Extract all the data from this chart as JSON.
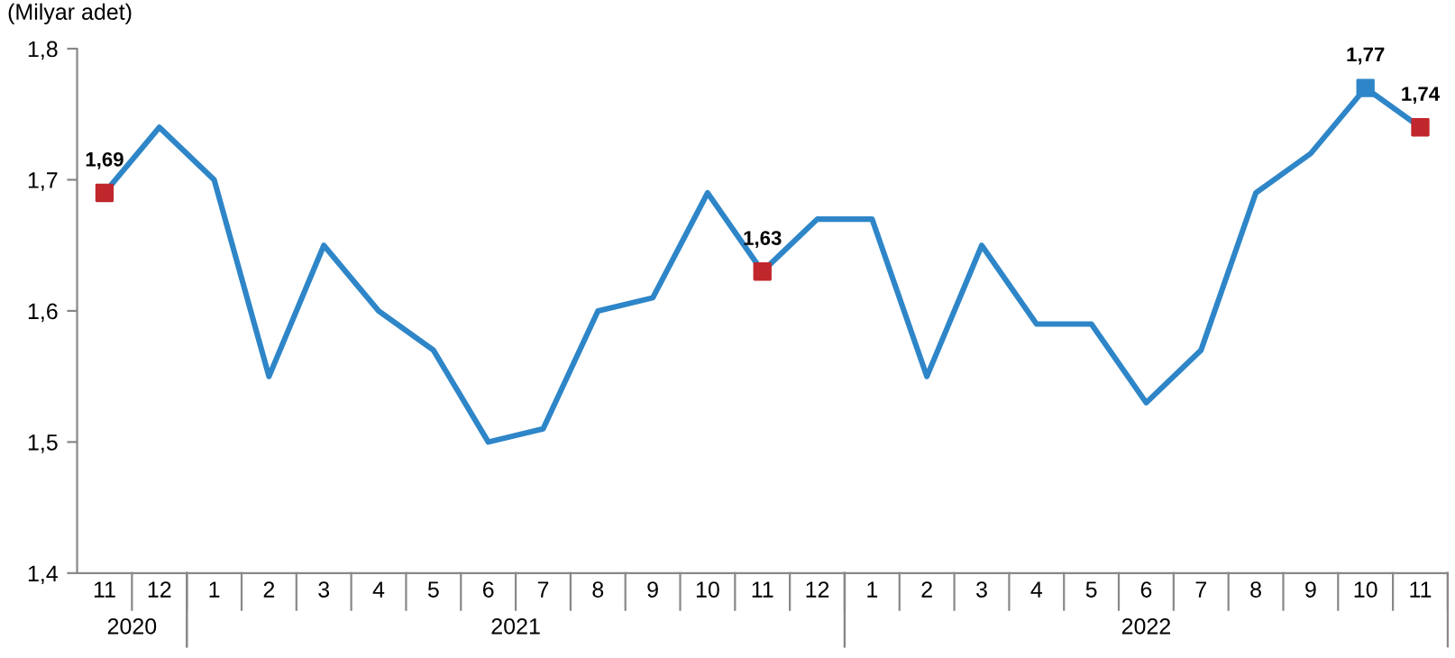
{
  "chart_data": {
    "type": "line",
    "ylabel": "(Milyar adet)",
    "categories": [
      "11",
      "12",
      "1",
      "2",
      "3",
      "4",
      "5",
      "6",
      "7",
      "8",
      "9",
      "10",
      "11",
      "12",
      "1",
      "2",
      "3",
      "4",
      "5",
      "6",
      "7",
      "8",
      "9",
      "10",
      "11"
    ],
    "annotations": [
      "2020",
      "2021",
      "2022"
    ],
    "series": [
      {
        "color": "#2e86c8",
        "values": [
          1.69,
          1.74,
          1.7,
          1.55,
          1.65,
          1.6,
          1.57,
          1.5,
          1.51,
          1.6,
          1.61,
          1.69,
          1.63,
          1.67,
          1.67,
          1.55,
          1.65,
          1.59,
          1.59,
          1.53,
          1.57,
          1.69,
          1.72,
          1.77,
          1.74
        ],
        "colors": [
          "#c0272d",
          null,
          null,
          null,
          null,
          null,
          null,
          null,
          null,
          null,
          null,
          null,
          "#c0272d",
          null,
          null,
          null,
          null,
          null,
          null,
          null,
          null,
          null,
          null,
          "#2e86c8",
          "#c0272d"
        ],
        "value_labels": [
          "1,69",
          null,
          null,
          null,
          null,
          null,
          null,
          null,
          null,
          null,
          null,
          null,
          "1,63",
          null,
          null,
          null,
          null,
          null,
          null,
          null,
          null,
          null,
          null,
          "1,77",
          "1,74"
        ]
      }
    ],
    "ylim": [
      1.4,
      1.8
    ],
    "yticks": [
      {
        "value": 1.4,
        "label": "1,4"
      },
      {
        "value": 1.5,
        "label": "1,5"
      },
      {
        "value": 1.6,
        "label": "1,6"
      },
      {
        "value": 1.7,
        "label": "1,7"
      },
      {
        "value": 1.8,
        "label": "1,8"
      }
    ],
    "grid": false,
    "legend": false
  }
}
